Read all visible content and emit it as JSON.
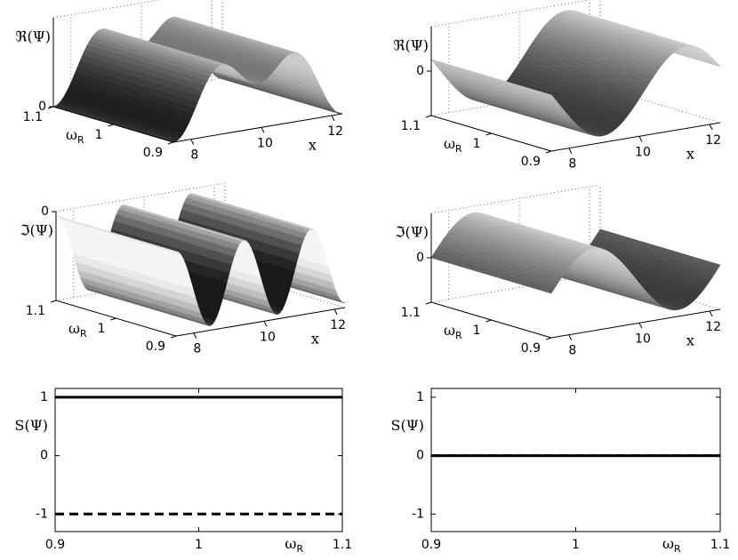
{
  "chart_data": [
    {
      "type": "surface",
      "zlabel": "ℜ(Ψ)",
      "ylabel": "ω",
      "ylabel_sub": "R",
      "xlabel": "x",
      "xlim": [
        7.5,
        12.3
      ],
      "ylim": [
        0.9,
        1.1
      ],
      "zlim": [
        0,
        2
      ],
      "xticks": [
        8,
        10,
        12
      ],
      "yticks": [
        0.9,
        1,
        1.1
      ],
      "zticks": [
        0
      ]
    },
    {
      "type": "surface",
      "zlabel": "ℜ(Ψ)",
      "ylabel": "ω",
      "ylabel_sub": "R",
      "xlabel": "x",
      "xlim": [
        7.5,
        12.3
      ],
      "ylim": [
        0.9,
        1.1
      ],
      "zlim": [
        -1,
        1
      ],
      "xticks": [
        8,
        10,
        12
      ],
      "yticks": [
        0.9,
        1,
        1.1
      ],
      "zticks": [
        0
      ]
    },
    {
      "type": "surface",
      "zlabel": "ℑ(Ψ)",
      "ylabel": "ω",
      "ylabel_sub": "R",
      "xlabel": "x",
      "xlim": [
        7.5,
        12.3
      ],
      "ylim": [
        0.9,
        1.1
      ],
      "zlim": [
        -2,
        0
      ],
      "xticks": [
        8,
        10,
        12
      ],
      "yticks": [
        0.9,
        1,
        1.1
      ],
      "zticks": [
        0
      ]
    },
    {
      "type": "surface",
      "zlabel": "ℑ(Ψ)",
      "ylabel": "ω",
      "ylabel_sub": "R",
      "xlabel": "x",
      "xlim": [
        7.5,
        12.3
      ],
      "ylim": [
        0.9,
        1.1
      ],
      "zlim": [
        -1,
        1
      ],
      "xticks": [
        8,
        10,
        12
      ],
      "yticks": [
        0.9,
        1,
        1.1
      ],
      "zticks": [
        0
      ]
    },
    {
      "type": "line",
      "ylabel": "S(Ψ)",
      "xlabel": "ω",
      "xlabel_sub": "R",
      "x": [
        0.9,
        1.1
      ],
      "xlim": [
        0.9,
        1.1
      ],
      "ylim": [
        -1.3,
        1.15
      ],
      "xticks": [
        0.9,
        1,
        1.1
      ],
      "yticks": [
        -1,
        0,
        1
      ],
      "series": [
        {
          "color": "#000000",
          "dashed": false,
          "values": [
            1,
            1
          ]
        },
        {
          "color": "#000000",
          "dashed": true,
          "values": [
            -1,
            -1
          ]
        }
      ]
    },
    {
      "type": "line",
      "ylabel": "S(Ψ)",
      "xlabel": "ω",
      "xlabel_sub": "R",
      "x": [
        0.9,
        1.1
      ],
      "xlim": [
        0.9,
        1.1
      ],
      "ylim": [
        -1.3,
        1.15
      ],
      "xticks": [
        0.9,
        1,
        1.1
      ],
      "yticks": [
        -1,
        0,
        1
      ],
      "series": [
        {
          "color": "#000000",
          "dashed": false,
          "values": [
            0,
            0
          ]
        },
        {
          "color": "#000000",
          "dashed": true,
          "values": [
            0,
            0
          ]
        }
      ]
    }
  ]
}
